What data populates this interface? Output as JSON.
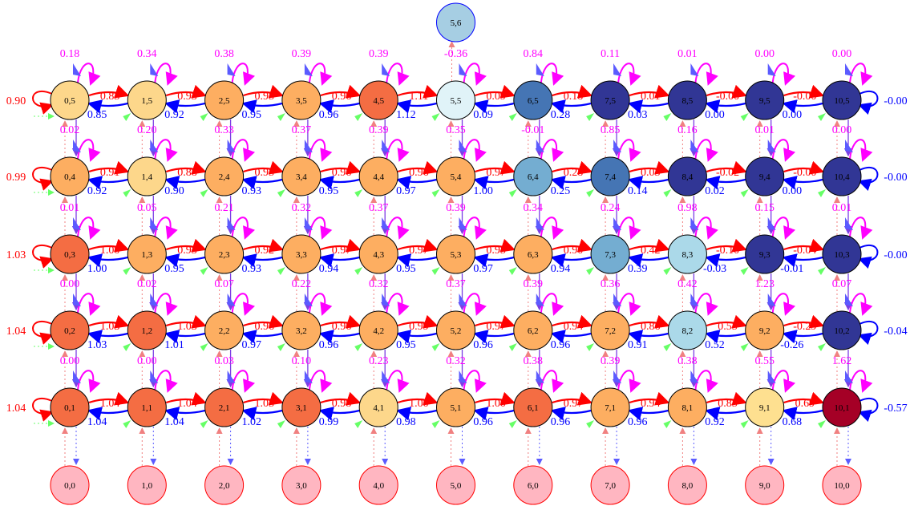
{
  "nodes": [
    {
      "id": "5,6",
      "fill": "#a6cee3",
      "stroke": "#0000ff"
    },
    {
      "id": "0,5",
      "fill": "#fdd78b"
    },
    {
      "id": "1,5",
      "fill": "#fdd78b"
    },
    {
      "id": "2,5",
      "fill": "#fdae61"
    },
    {
      "id": "3,5",
      "fill": "#fdae61"
    },
    {
      "id": "4,5",
      "fill": "#f46d43"
    },
    {
      "id": "5,5",
      "fill": "#e0f3f8"
    },
    {
      "id": "6,5",
      "fill": "#4575b4"
    },
    {
      "id": "7,5",
      "fill": "#313695"
    },
    {
      "id": "8,5",
      "fill": "#313695"
    },
    {
      "id": "9,5",
      "fill": "#313695"
    },
    {
      "id": "10,5",
      "fill": "#313695"
    },
    {
      "id": "0,4",
      "fill": "#fdae61"
    },
    {
      "id": "1,4",
      "fill": "#fdd78b"
    },
    {
      "id": "2,4",
      "fill": "#fdae61"
    },
    {
      "id": "3,4",
      "fill": "#fdae61"
    },
    {
      "id": "4,4",
      "fill": "#fdae61"
    },
    {
      "id": "5,4",
      "fill": "#fdae61"
    },
    {
      "id": "6,4",
      "fill": "#74add1"
    },
    {
      "id": "7,4",
      "fill": "#4575b4"
    },
    {
      "id": "8,4",
      "fill": "#313695"
    },
    {
      "id": "9,4",
      "fill": "#313695"
    },
    {
      "id": "10,4",
      "fill": "#313695"
    },
    {
      "id": "0,3",
      "fill": "#f46d43"
    },
    {
      "id": "1,3",
      "fill": "#fdae61"
    },
    {
      "id": "2,3",
      "fill": "#fdae61"
    },
    {
      "id": "3,3",
      "fill": "#fdae61"
    },
    {
      "id": "4,3",
      "fill": "#fdae61"
    },
    {
      "id": "5,3",
      "fill": "#fdae61"
    },
    {
      "id": "6,3",
      "fill": "#fdae61"
    },
    {
      "id": "7,3",
      "fill": "#74add1"
    },
    {
      "id": "8,3",
      "fill": "#abd9e9"
    },
    {
      "id": "9,3",
      "fill": "#313695"
    },
    {
      "id": "10,3",
      "fill": "#313695"
    },
    {
      "id": "0,2",
      "fill": "#f46d43"
    },
    {
      "id": "1,2",
      "fill": "#f46d43"
    },
    {
      "id": "2,2",
      "fill": "#fdae61"
    },
    {
      "id": "3,2",
      "fill": "#fdae61"
    },
    {
      "id": "4,2",
      "fill": "#fdae61"
    },
    {
      "id": "5,2",
      "fill": "#fdae61"
    },
    {
      "id": "6,2",
      "fill": "#fdae61"
    },
    {
      "id": "7,2",
      "fill": "#fdae61"
    },
    {
      "id": "8,2",
      "fill": "#abd9e9"
    },
    {
      "id": "9,2",
      "fill": "#fdae61"
    },
    {
      "id": "10,2",
      "fill": "#313695"
    },
    {
      "id": "0,1",
      "fill": "#f46d43"
    },
    {
      "id": "1,1",
      "fill": "#f46d43"
    },
    {
      "id": "2,1",
      "fill": "#f46d43"
    },
    {
      "id": "3,1",
      "fill": "#f46d43"
    },
    {
      "id": "4,1",
      "fill": "#fdd78b"
    },
    {
      "id": "5,1",
      "fill": "#fdae61"
    },
    {
      "id": "6,1",
      "fill": "#f46d43"
    },
    {
      "id": "7,1",
      "fill": "#fdae61"
    },
    {
      "id": "8,1",
      "fill": "#fdae61"
    },
    {
      "id": "9,1",
      "fill": "#fee090"
    },
    {
      "id": "10,1",
      "fill": "#a50026"
    },
    {
      "id": "0,0",
      "fill": "#ffb6c1",
      "stroke": "#ff0000"
    },
    {
      "id": "1,0",
      "fill": "#ffb6c1",
      "stroke": "#ff0000"
    },
    {
      "id": "2,0",
      "fill": "#ffb6c1",
      "stroke": "#ff0000"
    },
    {
      "id": "3,0",
      "fill": "#ffb6c1",
      "stroke": "#ff0000"
    },
    {
      "id": "4,0",
      "fill": "#ffb6c1",
      "stroke": "#ff0000"
    },
    {
      "id": "5,0",
      "fill": "#ffb6c1",
      "stroke": "#ff0000"
    },
    {
      "id": "6,0",
      "fill": "#ffb6c1",
      "stroke": "#ff0000"
    },
    {
      "id": "7,0",
      "fill": "#ffb6c1",
      "stroke": "#ff0000"
    },
    {
      "id": "8,0",
      "fill": "#ffb6c1",
      "stroke": "#ff0000"
    },
    {
      "id": "9,0",
      "fill": "#ffb6c1",
      "stroke": "#ff0000"
    },
    {
      "id": "10,0",
      "fill": "#ffb6c1",
      "stroke": "#ff0000"
    }
  ],
  "row_labels": [
    {
      "row": 5,
      "left": "0.90",
      "right": "-0.00"
    },
    {
      "row": 4,
      "left": "0.99",
      "right": "-0.00"
    },
    {
      "row": 3,
      "left": "1.03",
      "right": "-0.00"
    },
    {
      "row": 2,
      "left": "1.04",
      "right": "-0.04"
    },
    {
      "row": 1,
      "left": "1.04",
      "right": "-0.57"
    }
  ],
  "right_edges": {
    "5": [
      "0.85",
      "0.93",
      "0.95",
      "0.96",
      "1.11",
      "0.09",
      "0.18",
      "0.01",
      "-0.00",
      "-0.00"
    ],
    "4": [
      "0.91",
      "0.88",
      "0.95",
      "0.96",
      "0.96",
      "0.97",
      "0.28",
      "0.05",
      "-0.02",
      "-0.00"
    ],
    "3": [
      "1.00",
      "0.93",
      "0.92",
      "0.97",
      "0.97",
      "0.95",
      "0.90",
      "0.42",
      "-0.10",
      "-0.04"
    ],
    "2": [
      "1.03",
      "1.03",
      "0.96",
      "0.96",
      "0.99",
      "0.97",
      "0.94",
      "0.86",
      "0.55",
      "-0.29"
    ],
    "1": [
      "1.04",
      "1.04",
      "1.05",
      "0.98",
      "1.00",
      "1.00",
      "0.97",
      "0.94",
      "0.85",
      "0.69"
    ]
  },
  "left_edges": {
    "5": [
      "0.85",
      "0.92",
      "0.95",
      "0.96",
      "1.12",
      "0.09",
      "0.28",
      "0.03",
      "0.00",
      "0.00"
    ],
    "4": [
      "0.92",
      "0.90",
      "0.93",
      "0.95",
      "0.97",
      "1.00",
      "0.25",
      "0.14",
      "0.02",
      "0.00"
    ],
    "3": [
      "1.00",
      "0.95",
      "0.93",
      "0.94",
      "0.95",
      "0.97",
      "0.94",
      "0.39",
      "-0.03",
      "-0.01"
    ],
    "2": [
      "1.03",
      "1.01",
      "0.97",
      "0.96",
      "0.95",
      "0.96",
      "0.96",
      "0.91",
      "0.52",
      "-0.26"
    ],
    "1": [
      "1.04",
      "1.04",
      "1.02",
      "0.99",
      "0.98",
      "0.96",
      "0.96",
      "0.96",
      "0.92",
      "0.68"
    ]
  },
  "up_labels": {
    "5": [
      "0.18",
      "0.34",
      "0.38",
      "0.39",
      "0.39",
      "-0.36",
      "0.84",
      "0.11",
      "0.01",
      "0.00",
      "0.00"
    ],
    "4": [
      "0.02",
      "0.20",
      "0.33",
      "0.37",
      "0.39",
      "0.35",
      "-0.01",
      "0.85",
      "0.16",
      "0.01",
      "0.00"
    ],
    "3": [
      "0.01",
      "0.05",
      "0.21",
      "0.32",
      "0.37",
      "0.39",
      "0.34",
      "0.24",
      "0.98",
      "0.15",
      "0.01"
    ],
    "2": [
      "0.00",
      "0.02",
      "0.07",
      "0.22",
      "0.32",
      "0.37",
      "0.39",
      "0.36",
      "0.42",
      "1.23",
      "0.07"
    ],
    "1": [
      "0.00",
      "0.00",
      "0.03",
      "0.10",
      "0.23",
      "0.32",
      "0.38",
      "0.39",
      "0.38",
      "0.55",
      "1.62"
    ]
  },
  "colors": {
    "right_edge": "#ff0000",
    "left_edge": "#0000ff",
    "up_label": "#ff00ff",
    "node_stroke": "#000000",
    "green_arrow": "#66ff66"
  }
}
